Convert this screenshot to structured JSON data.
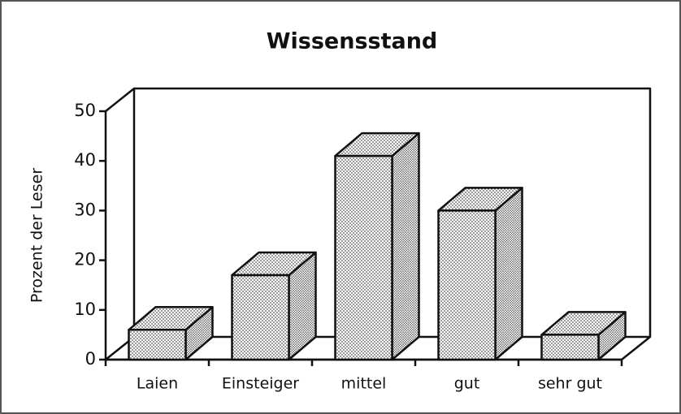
{
  "chart_data": {
    "type": "bar3d",
    "title": "Wissensstand",
    "y_label": "Prozent der Leser",
    "categories": [
      "Laien",
      "Einsteiger",
      "mittel",
      "gut",
      "sehr gut"
    ],
    "values": [
      6,
      17,
      41,
      30,
      5
    ],
    "color": "#555555",
    "ylim": [
      0,
      50
    ],
    "yticks": [
      0,
      10,
      20,
      30,
      40,
      50
    ]
  }
}
